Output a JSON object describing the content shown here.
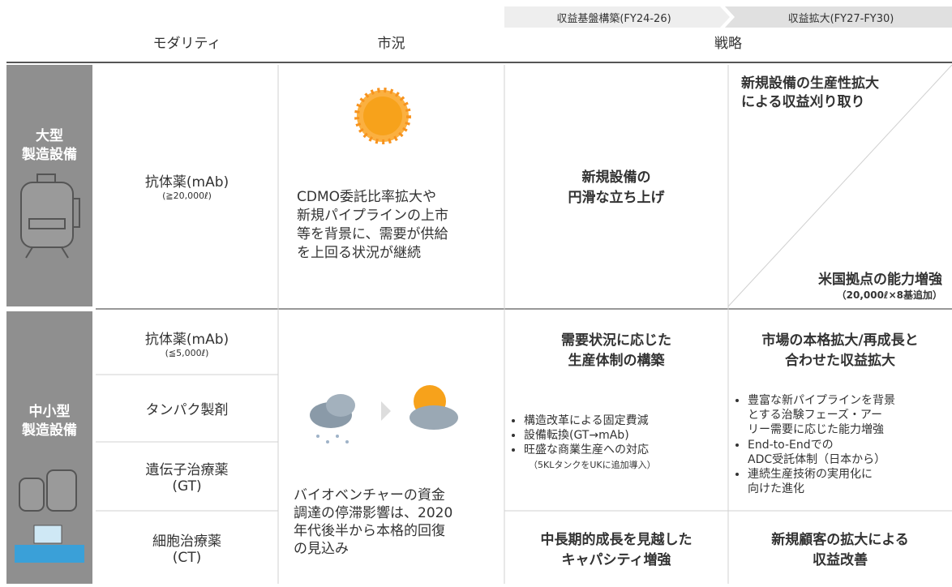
{
  "phases": [
    "収益基盤構築(FY24-26)",
    "収益拡大(FY27-FY30)"
  ],
  "headers": [
    "モダリティ",
    "市況",
    "戦略"
  ],
  "rows": [
    {
      "label": "大型\n製造設備",
      "modalities": [
        {
          "name": "抗体薬(mAb)",
          "note": "(≧20,000ℓ)"
        }
      ],
      "market": "CDMO委託比率拡大や\n新規パイプラインの上市\n等を背景に、需要が供給\nを上回る状況が継続",
      "strategy1": "新規設備の\n円滑な立ち上げ",
      "strategy2_top": "新規設備の生産性拡大\nによる収益刈り取り",
      "strategy2_bottom": "米国拠点の能力増強",
      "strategy2_note": "（20,000ℓ×8基追加）"
    },
    {
      "label": "中小型\n製造設備",
      "modalities": [
        {
          "name": "抗体薬(mAb)",
          "note": "(≦5,000ℓ)"
        },
        {
          "name": "タンパク製剤"
        },
        {
          "name": "遺伝子治療薬\n(GT)"
        },
        {
          "name": "細胞治療薬\n(CT)"
        }
      ],
      "market": "バイオベンチャーの資金\n調達の停滞影響は、2020\n年代後半から本格的回復\nの見込み",
      "strategy1": {
        "heading": "需要状況に応じた\n生産体制の構築",
        "bullets": [
          "構造改革による固定費減",
          "設備転換(GT→mAb)",
          "旺盛な商業生産への対応"
        ],
        "note": "（5KLタンクをUKに追加導入）",
        "bottom": "中長期的成長を見越した\nキャパシティ増強"
      },
      "strategy2": {
        "heading": "市場の本格拡大/再成長と\n合わせた収益拡大",
        "bullets": [
          "豊富な新パイプラインを背景\nとする治験フェーズ・アー\nリー需要に応じた能力増強",
          "End-to-Endでの\nADC受託体制（日本から）",
          "連続生産技術の実用化に\n向けた進化"
        ],
        "bottom": "新規顧客の拡大による\n収益改善"
      }
    }
  ]
}
